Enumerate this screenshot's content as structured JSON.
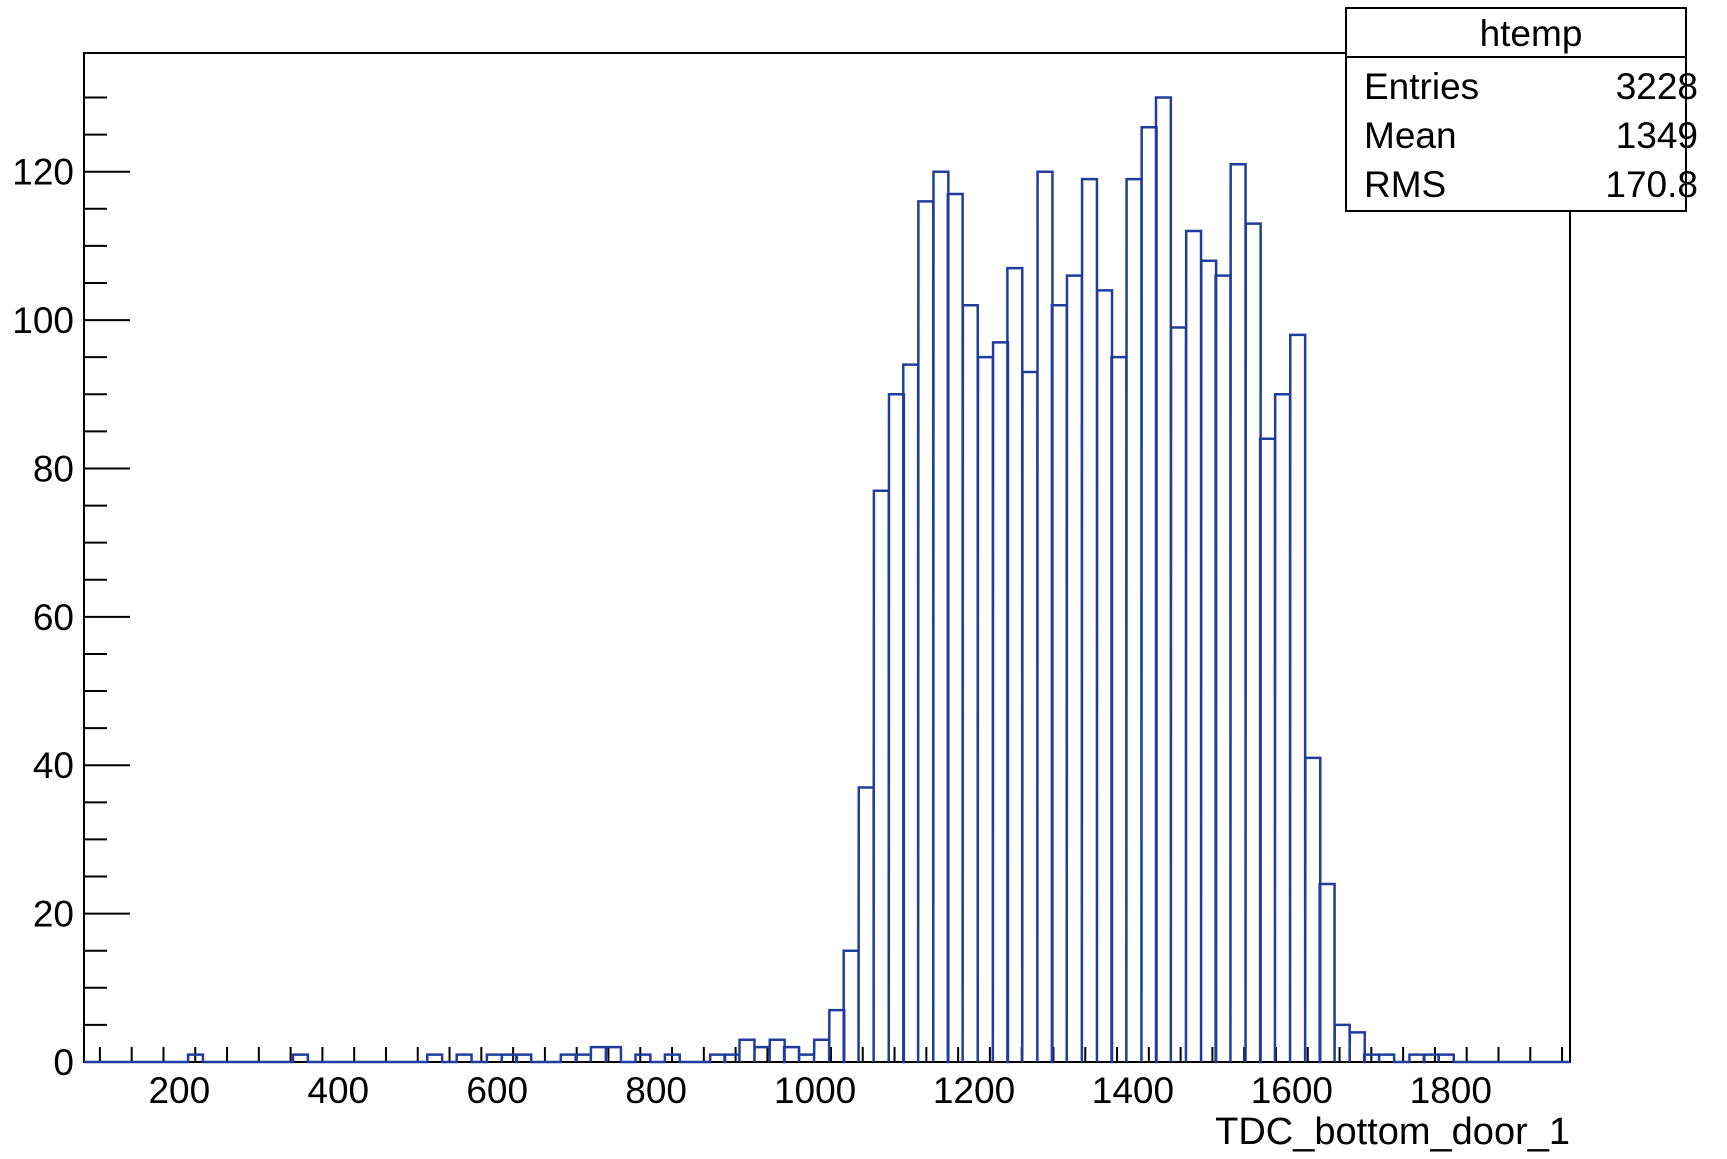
{
  "chart_data": {
    "type": "bar",
    "histogram": true,
    "xlabel": "TDC_bottom_door_1",
    "ylabel": "",
    "xlim": [
      80,
      1950
    ],
    "ylim": [
      0,
      136
    ],
    "x_tick_labels": [
      "200",
      "400",
      "600",
      "800",
      "1000",
      "1200",
      "1400",
      "1600",
      "1800"
    ],
    "y_tick_labels": [
      "0",
      "20",
      "40",
      "60",
      "80",
      "100",
      "120"
    ],
    "grid": false,
    "line_color": "#1f3d9c",
    "bin_width": 18.7,
    "bins": [
      {
        "x0": 211,
        "y": 1
      },
      {
        "x0": 343,
        "y": 1
      },
      {
        "x0": 512,
        "y": 1
      },
      {
        "x0": 549,
        "y": 1
      },
      {
        "x0": 587,
        "y": 1
      },
      {
        "x0": 606,
        "y": 1
      },
      {
        "x0": 624,
        "y": 1
      },
      {
        "x0": 680,
        "y": 1
      },
      {
        "x0": 699,
        "y": 1
      },
      {
        "x0": 718,
        "y": 2
      },
      {
        "x0": 737,
        "y": 2
      },
      {
        "x0": 774,
        "y": 1
      },
      {
        "x0": 811,
        "y": 1
      },
      {
        "x0": 868,
        "y": 1
      },
      {
        "x0": 886,
        "y": 1
      },
      {
        "x0": 905,
        "y": 3
      },
      {
        "x0": 924,
        "y": 2
      },
      {
        "x0": 943,
        "y": 3
      },
      {
        "x0": 961,
        "y": 2
      },
      {
        "x0": 980,
        "y": 1
      },
      {
        "x0": 999,
        "y": 3
      },
      {
        "x0": 1018,
        "y": 7
      },
      {
        "x0": 1036,
        "y": 15
      },
      {
        "x0": 1055,
        "y": 37
      },
      {
        "x0": 1074,
        "y": 77
      },
      {
        "x0": 1093,
        "y": 90
      },
      {
        "x0": 1111,
        "y": 94
      },
      {
        "x0": 1130,
        "y": 116
      },
      {
        "x0": 1149,
        "y": 120
      },
      {
        "x0": 1167,
        "y": 117
      },
      {
        "x0": 1186,
        "y": 102
      },
      {
        "x0": 1205,
        "y": 95
      },
      {
        "x0": 1224,
        "y": 97
      },
      {
        "x0": 1242,
        "y": 107
      },
      {
        "x0": 1261,
        "y": 93
      },
      {
        "x0": 1280,
        "y": 120
      },
      {
        "x0": 1298,
        "y": 102
      },
      {
        "x0": 1317,
        "y": 106
      },
      {
        "x0": 1336,
        "y": 119
      },
      {
        "x0": 1355,
        "y": 104
      },
      {
        "x0": 1373,
        "y": 95
      },
      {
        "x0": 1392,
        "y": 119
      },
      {
        "x0": 1411,
        "y": 126
      },
      {
        "x0": 1429,
        "y": 130
      },
      {
        "x0": 1448,
        "y": 99
      },
      {
        "x0": 1467,
        "y": 112
      },
      {
        "x0": 1486,
        "y": 108
      },
      {
        "x0": 1504,
        "y": 106
      },
      {
        "x0": 1523,
        "y": 121
      },
      {
        "x0": 1542,
        "y": 113
      },
      {
        "x0": 1560,
        "y": 84
      },
      {
        "x0": 1579,
        "y": 90
      },
      {
        "x0": 1598,
        "y": 98
      },
      {
        "x0": 1617,
        "y": 41
      },
      {
        "x0": 1635,
        "y": 24
      },
      {
        "x0": 1654,
        "y": 5
      },
      {
        "x0": 1673,
        "y": 4
      },
      {
        "x0": 1691,
        "y": 1
      },
      {
        "x0": 1710,
        "y": 1
      },
      {
        "x0": 1748,
        "y": 1
      },
      {
        "x0": 1766,
        "y": 1
      },
      {
        "x0": 1785,
        "y": 1
      }
    ]
  },
  "stats_box": {
    "title": "htemp",
    "rows": [
      {
        "label": "Entries",
        "value": "3228"
      },
      {
        "label": "Mean",
        "value": "1349"
      },
      {
        "label": "RMS",
        "value": "170.8"
      }
    ]
  }
}
